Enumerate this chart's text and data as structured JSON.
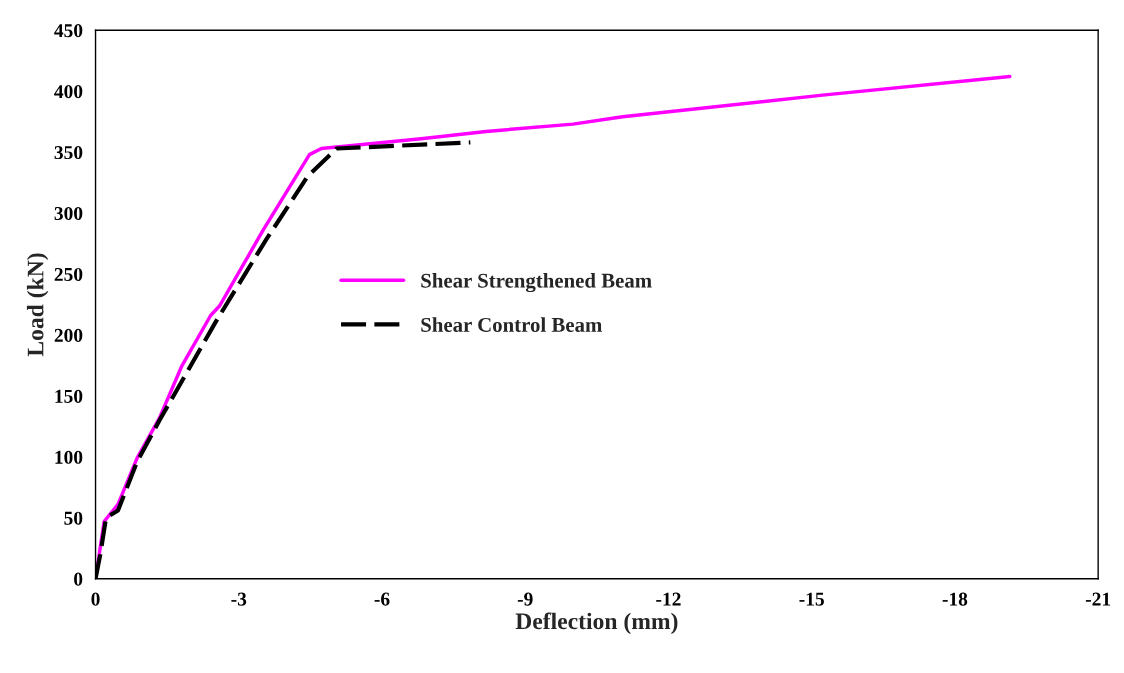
{
  "chart_data": {
    "type": "line",
    "xlabel": "Deflection (mm)",
    "ylabel": "Load (kN)",
    "xlim": [
      0,
      -21
    ],
    "xticks": [
      0,
      -3,
      -6,
      -9,
      -12,
      -15,
      -18,
      -21
    ],
    "ylim": [
      0,
      450
    ],
    "yticks": [
      0,
      50,
      100,
      150,
      200,
      250,
      300,
      350,
      400,
      450
    ],
    "grid": false,
    "legend": "center",
    "marker": "none",
    "series": [
      {
        "name": "Shear Strengthened Beam",
        "color": "#ff00ff",
        "line_style": "solid",
        "x": [
          0,
          -0.18,
          -0.47,
          -0.87,
          -1.34,
          -1.8,
          -2.41,
          -2.6,
          -3.51,
          -4.48,
          -4.73,
          -6.82,
          -8.18,
          -10.0,
          -11.04,
          -15.28,
          -19.15
        ],
        "values": [
          0,
          47,
          61,
          99,
          132,
          174,
          216,
          224,
          286,
          348,
          353,
          361,
          367,
          373,
          379,
          397,
          412
        ]
      },
      {
        "name": "Shear Control Beam",
        "color": "#000000",
        "line_style": "dashed",
        "x": [
          0,
          -0.1,
          -0.22,
          -0.47,
          -0.87,
          -1.34,
          -2.52,
          -3.57,
          -4.44,
          -5.05,
          -7.85
        ],
        "values": [
          0,
          20,
          50,
          56,
          96,
          130,
          211,
          278,
          330,
          353,
          358
        ]
      }
    ]
  }
}
